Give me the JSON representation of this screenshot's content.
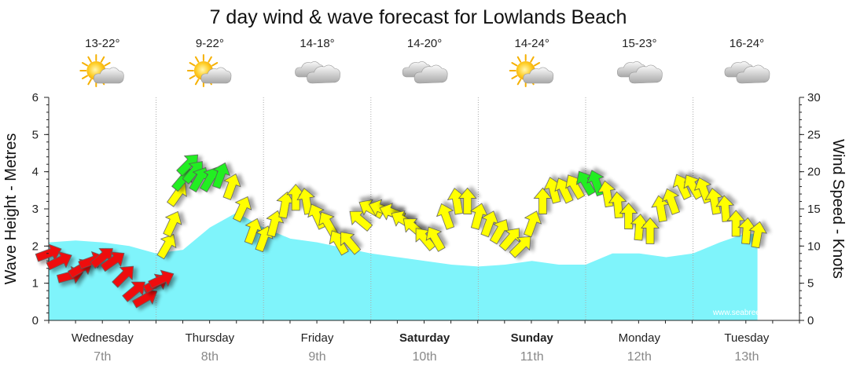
{
  "title": "7 day wind & wave forecast for Lowlands Beach",
  "colors": {
    "wave_fill": "#7ff4fb",
    "wind_light": "#ee1111",
    "wind_moderate": "#ffff00",
    "wind_strong": "#22ee22",
    "arrow_outline": "#555555",
    "grid": "#aaaaaa"
  },
  "days": [
    {
      "name": "Wednesday",
      "date": "7th",
      "bold": false,
      "temp": "13-22°",
      "weather_icon": "sun-cloud-icon"
    },
    {
      "name": "Thursday",
      "date": "8th",
      "bold": false,
      "temp": "9-22°",
      "weather_icon": "sun-cloud-icon"
    },
    {
      "name": "Friday",
      "date": "9th",
      "bold": false,
      "temp": "14-18°",
      "weather_icon": "cloud-icon"
    },
    {
      "name": "Saturday",
      "date": "10th",
      "bold": true,
      "temp": "14-20°",
      "weather_icon": "cloud-icon"
    },
    {
      "name": "Sunday",
      "date": "11th",
      "bold": true,
      "temp": "14-24°",
      "weather_icon": "sun-cloud-icon"
    },
    {
      "name": "Monday",
      "date": "12th",
      "bold": false,
      "temp": "15-23°",
      "weather_icon": "cloud-icon"
    },
    {
      "name": "Tuesday",
      "date": "13th",
      "bold": false,
      "temp": "16-24°",
      "weather_icon": "cloud-icon"
    }
  ],
  "watermark": "www.seabreeze.com.au",
  "chart_data": {
    "type": "area",
    "title": "7 day wind & wave forecast for Lowlands Beach",
    "x_unit": "days from start of Wednesday 7th",
    "x_range": [
      0,
      6.6
    ],
    "categories": [
      "Wednesday 7th",
      "Thursday 8th",
      "Friday 9th",
      "Saturday 10th",
      "Sunday 11th",
      "Monday 12th",
      "Tuesday 13th"
    ],
    "y_left": {
      "label": "Wave Height - Metres",
      "range": [
        0,
        6
      ],
      "ticks": [
        0,
        1,
        2,
        3,
        4,
        5,
        6
      ]
    },
    "y_right": {
      "label": "Wind Speed - Knots",
      "range": [
        0,
        30
      ],
      "ticks": [
        0,
        5,
        10,
        15,
        20,
        25,
        30
      ]
    },
    "grid": true,
    "series": [
      {
        "name": "Wave Height",
        "axis": "left",
        "style": "area",
        "x": [
          0,
          0.25,
          0.5,
          0.75,
          1.0,
          1.25,
          1.5,
          1.75,
          2.0,
          2.25,
          2.5,
          2.75,
          3.0,
          3.25,
          3.5,
          3.75,
          4.0,
          4.25,
          4.5,
          4.75,
          5.0,
          5.25,
          5.5,
          5.75,
          6.0,
          6.25,
          6.5,
          6.6
        ],
        "values": [
          2.1,
          2.15,
          2.1,
          2.0,
          1.8,
          1.9,
          2.5,
          2.9,
          2.5,
          2.2,
          2.1,
          1.95,
          1.8,
          1.7,
          1.6,
          1.5,
          1.45,
          1.5,
          1.6,
          1.5,
          1.5,
          1.8,
          1.8,
          1.7,
          1.8,
          2.1,
          2.35,
          2.3
        ]
      },
      {
        "name": "Wind Speed",
        "axis": "right",
        "style": "arrows",
        "x": [
          0.0,
          0.1,
          0.2,
          0.3,
          0.4,
          0.5,
          0.6,
          0.7,
          0.8,
          0.9,
          1.0,
          1.05,
          1.1,
          1.15,
          1.2,
          1.25,
          1.3,
          1.35,
          1.4,
          1.5,
          1.6,
          1.7,
          1.8,
          1.9,
          2.0,
          2.1,
          2.2,
          2.3,
          2.4,
          2.5,
          2.6,
          2.7,
          2.8,
          2.9,
          3.0,
          3.1,
          3.2,
          3.3,
          3.4,
          3.5,
          3.6,
          3.7,
          3.8,
          3.9,
          4.0,
          4.1,
          4.2,
          4.3,
          4.4,
          4.5,
          4.6,
          4.7,
          4.8,
          4.9,
          5.0,
          5.1,
          5.2,
          5.3,
          5.4,
          5.5,
          5.6,
          5.7,
          5.8,
          5.9,
          6.0,
          6.1,
          6.2,
          6.3,
          6.4,
          6.5,
          6.6
        ],
        "values": [
          9,
          8,
          6,
          7,
          8,
          8.5,
          8,
          6,
          4,
          3,
          5,
          5.5,
          10,
          13,
          17,
          19,
          21,
          20,
          19,
          19,
          19.5,
          18,
          15,
          12,
          11,
          13,
          15.5,
          16.5,
          16,
          14,
          13,
          10.5,
          10.5,
          13.5,
          15,
          15,
          14.5,
          13.5,
          12.5,
          11,
          11,
          14,
          16,
          16,
          14,
          13,
          12,
          11,
          10,
          13,
          16,
          17.5,
          17.5,
          18,
          18.5,
          18.5,
          17,
          15.5,
          14,
          12.5,
          12,
          15,
          16,
          18,
          18,
          17.5,
          16,
          15,
          13,
          12,
          11.5
        ],
        "direction_deg": [
          200,
          205,
          195,
          210,
          200,
          220,
          215,
          225,
          220,
          210,
          210,
          205,
          240,
          245,
          235,
          230,
          225,
          230,
          240,
          240,
          250,
          250,
          245,
          250,
          250,
          255,
          260,
          270,
          280,
          295,
          300,
          300,
          310,
          320,
          330,
          340,
          340,
          330,
          320,
          310,
          300,
          290,
          280,
          270,
          255,
          250,
          240,
          230,
          225,
          250,
          270,
          285,
          295,
          300,
          300,
          290,
          280,
          275,
          270,
          265,
          270,
          280,
          290,
          295,
          300,
          290,
          280,
          275,
          270,
          265,
          260
        ],
        "speed_bands": {
          "light": "below 10 knots",
          "moderate": "10-18 knots",
          "strong": "above 18 knots"
        }
      }
    ]
  }
}
